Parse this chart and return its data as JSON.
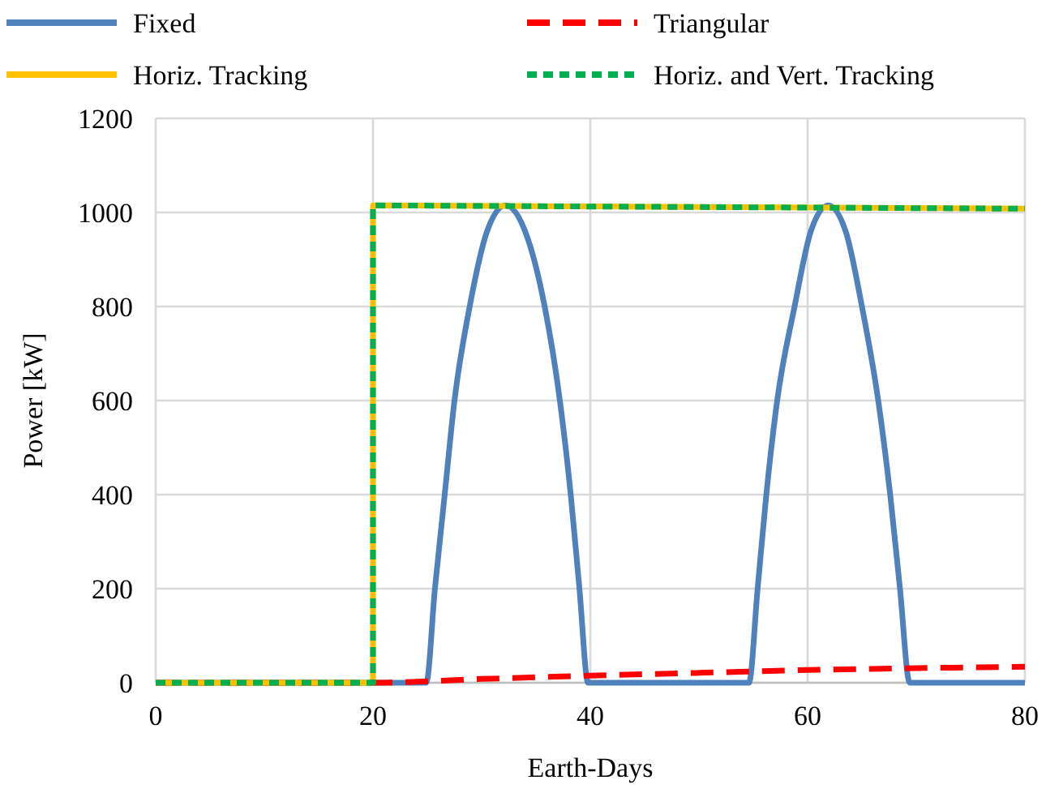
{
  "chart_data": {
    "type": "line",
    "xlabel": "Earth-Days",
    "ylabel": "Power [kW]",
    "xlim": [
      0,
      80
    ],
    "xticks": [
      0,
      20,
      40,
      60,
      80
    ],
    "ylim": [
      0,
      1200
    ],
    "yticks": [
      0,
      200,
      400,
      600,
      800,
      1000,
      1200
    ],
    "grid": true,
    "legend": "top",
    "series": [
      {
        "name": "Fixed",
        "color": "#4f81bd",
        "line_style": "solid",
        "x": [
          0,
          24.9,
          25.7,
          26.6,
          27.5,
          28.9,
          30.5,
          32.2,
          34,
          35.8,
          37.2,
          38.2,
          39,
          39.8,
          54.6,
          55.4,
          56.2,
          57.2,
          58.8,
          60.3,
          61.9,
          63.5,
          65,
          66.5,
          67.6,
          68.5,
          69.4,
          80
        ],
        "values": [
          0,
          0,
          200,
          400,
          600,
          800,
          960,
          1015,
          960,
          800,
          600,
          400,
          200,
          0,
          0,
          200,
          400,
          600,
          800,
          960,
          1015,
          960,
          800,
          600,
          400,
          200,
          0,
          0
        ]
      },
      {
        "name": "Triangular",
        "color": "#ff0000",
        "line_style": "dashed",
        "x": [
          0,
          20,
          30,
          40,
          50,
          60,
          70,
          80
        ],
        "values": [
          0,
          0,
          8,
          15,
          21,
          27,
          31,
          34
        ]
      },
      {
        "name": "Horiz. Tracking",
        "color": "#ffc000",
        "line_style": "solid",
        "x": [
          0,
          20,
          20,
          80
        ],
        "values": [
          0,
          0,
          1015,
          1008
        ]
      },
      {
        "name": "Horiz. and Vert. Tracking",
        "color": "#00b050",
        "line_style": "dotted",
        "x": [
          0,
          20,
          20,
          80
        ],
        "values": [
          0,
          0,
          1015,
          1008
        ]
      }
    ]
  }
}
